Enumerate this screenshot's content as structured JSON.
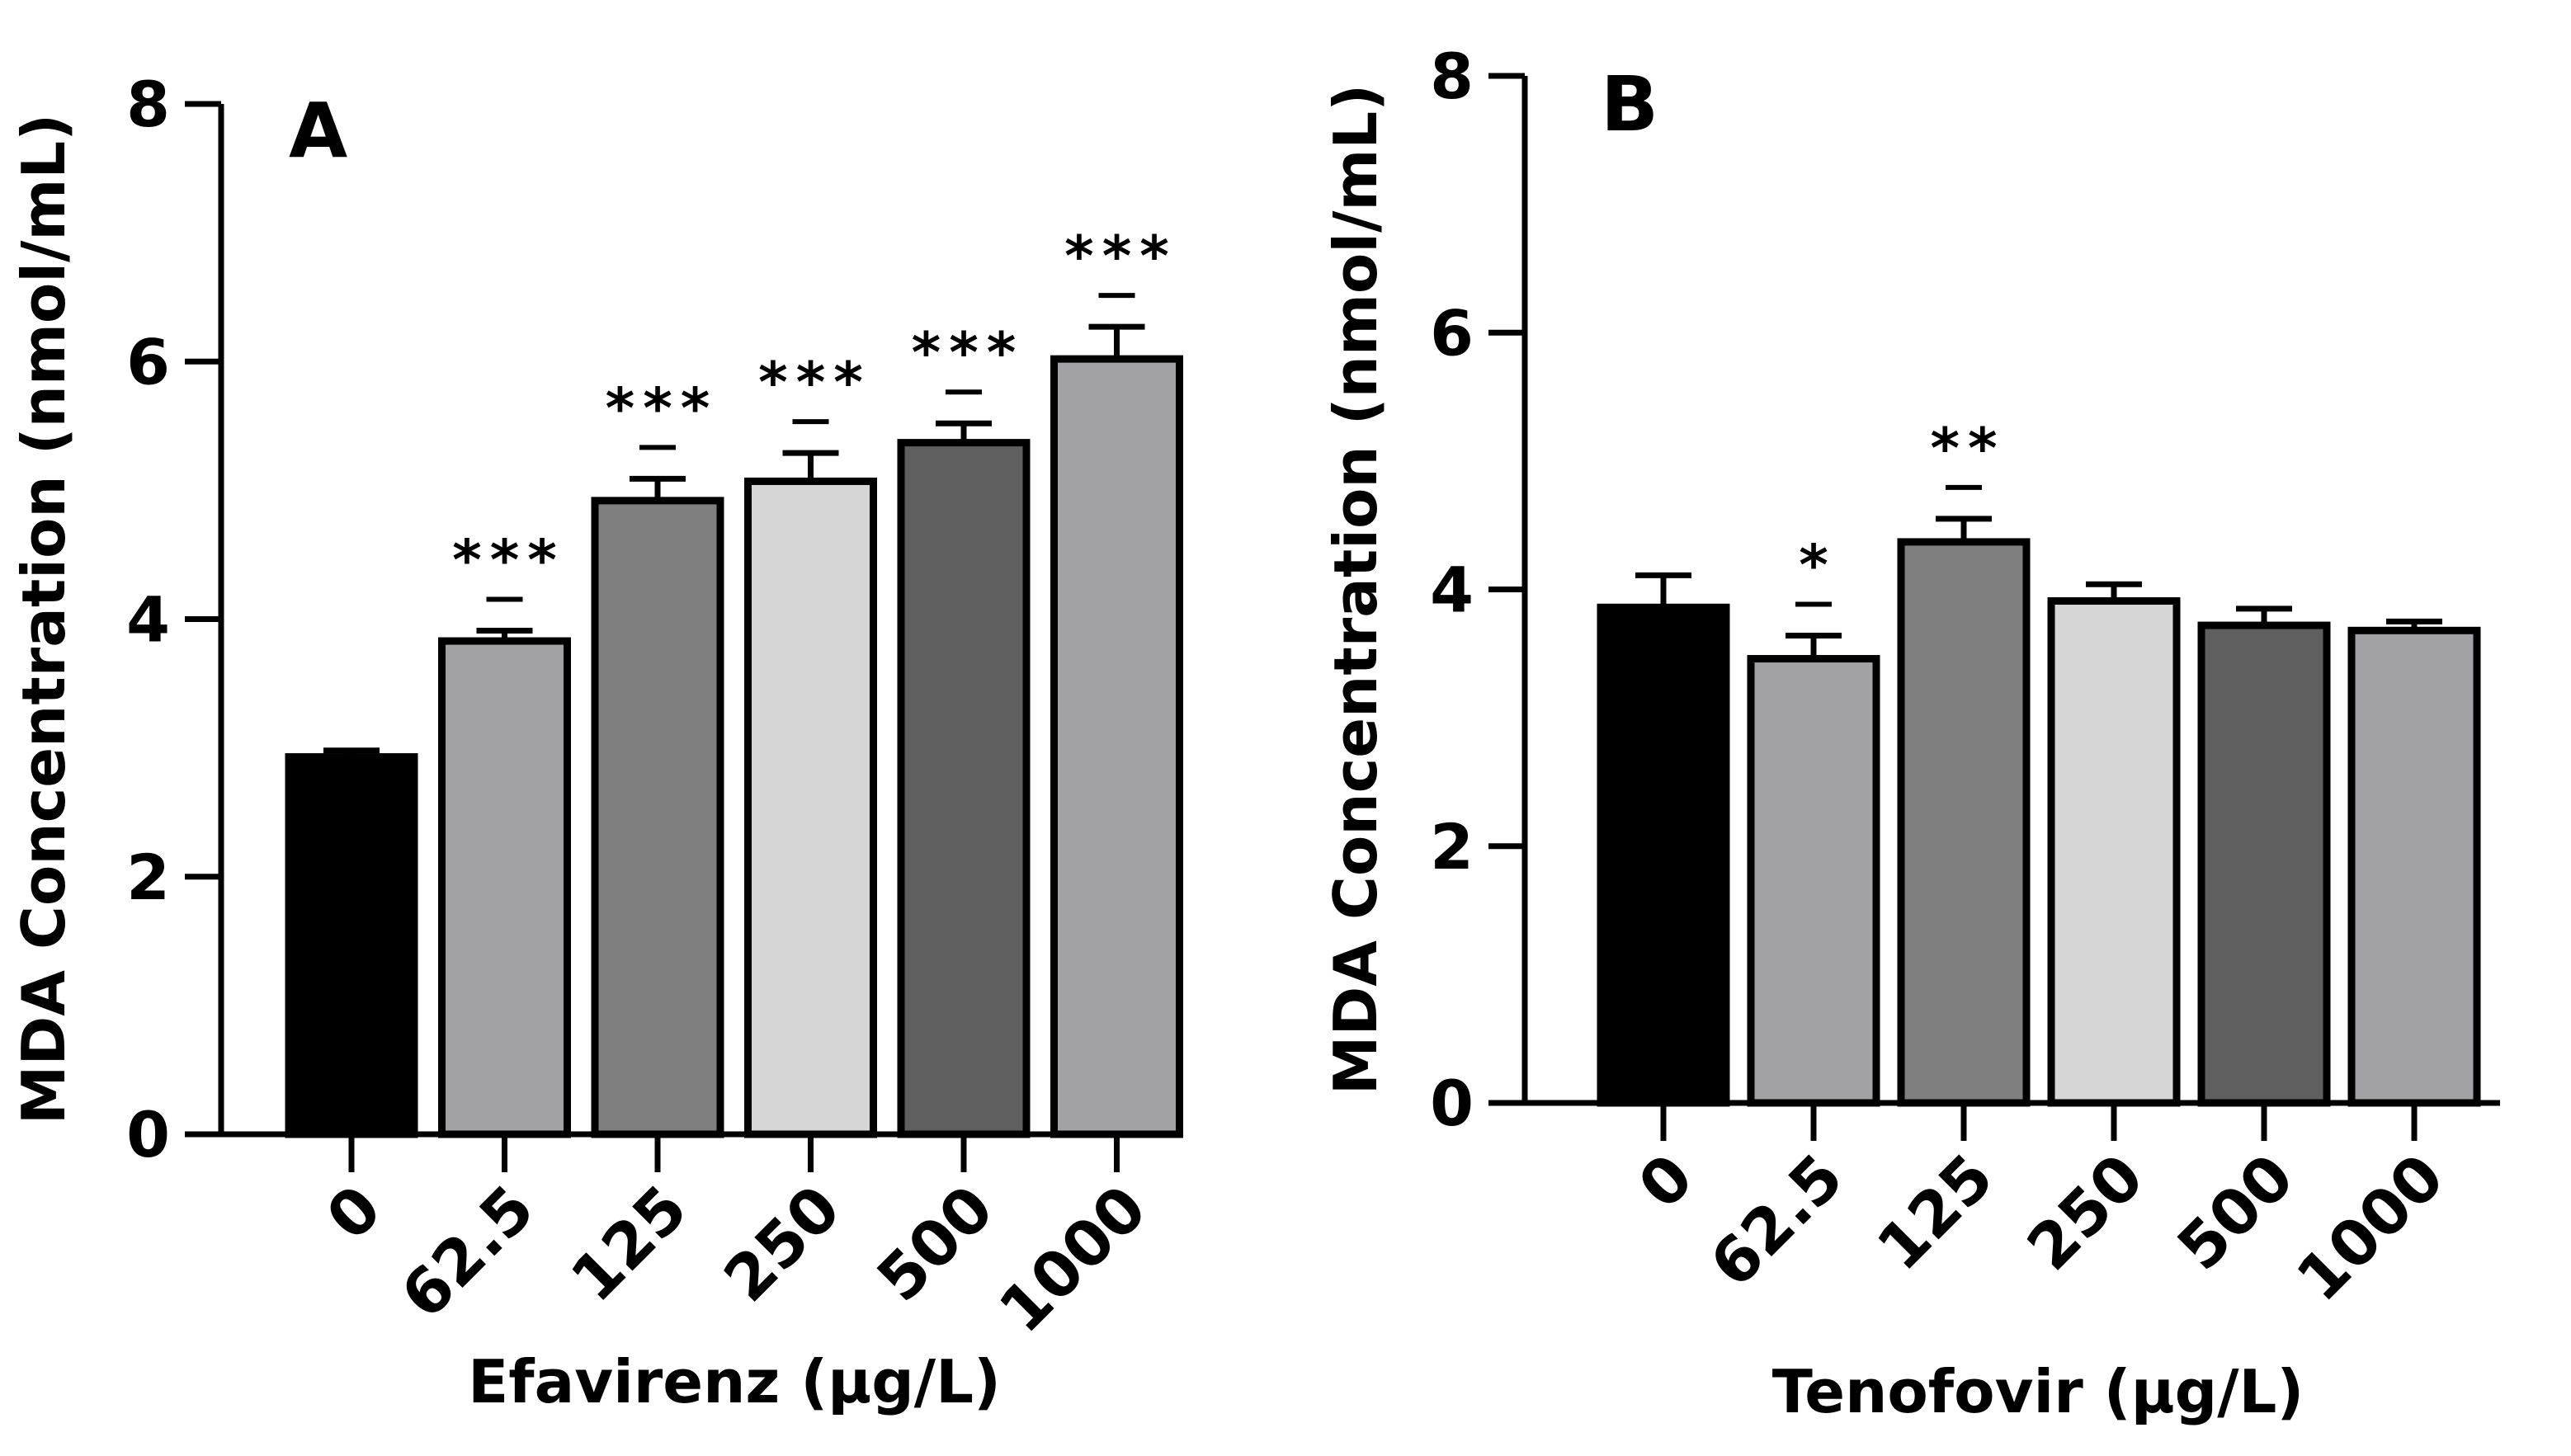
{
  "chart_data": [
    {
      "type": "bar",
      "panel_label": "A",
      "title": "",
      "xlabel": "Efavirenz  (μg/L)",
      "ylabel": "MDA Concentration (nmol/mL)",
      "ylim": [
        0,
        8
      ],
      "yticks": [
        "0",
        "2",
        "4",
        "6",
        "8"
      ],
      "categories": [
        "0",
        "62.5",
        "125",
        "250",
        "500",
        "1000"
      ],
      "values": [
        2.93,
        3.83,
        4.92,
        5.07,
        5.37,
        6.02
      ],
      "errors": [
        0.05,
        0.08,
        0.17,
        0.22,
        0.15,
        0.25
      ],
      "significance": [
        "",
        "***",
        "***",
        "***",
        "***",
        "***"
      ],
      "bar_colors": [
        "#000000",
        "#a2a2a6",
        "#7f7f7f",
        "#d6d6d6",
        "#5f5f5f",
        "#a2a2a6"
      ],
      "grid": false,
      "legend": "none"
    },
    {
      "type": "bar",
      "panel_label": "B",
      "title": "",
      "xlabel": "Tenofovir (μg/L)",
      "ylabel": "MDA Concentration (nmol/mL)",
      "ylim": [
        0,
        8
      ],
      "yticks": [
        "0",
        "2",
        "4",
        "6",
        "8"
      ],
      "categories": [
        "0",
        "62.5",
        "125",
        "250",
        "500",
        "1000"
      ],
      "values": [
        3.86,
        3.46,
        4.37,
        3.91,
        3.72,
        3.68
      ],
      "errors": [
        0.25,
        0.18,
        0.18,
        0.13,
        0.13,
        0.07
      ],
      "significance": [
        "",
        "*",
        "**",
        "",
        "",
        ""
      ],
      "bar_colors": [
        "#000000",
        "#a2a2a6",
        "#7f7f7f",
        "#d6d6d6",
        "#5f5f5f",
        "#a2a2a6"
      ],
      "grid": false,
      "legend": "none"
    }
  ]
}
